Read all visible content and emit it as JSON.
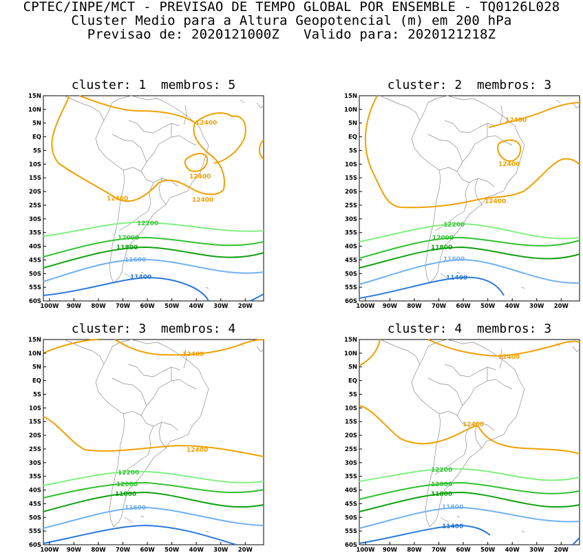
{
  "header": {
    "line1": "CPTEC/INPE/MCT - PREVISAO DE TEMPO GLOBAL POR ENSEMBLE - TQ0126L028",
    "line2": "Cluster Medio para a Altura Geopotencial (m) em 200 hPa",
    "line3": "Previsao de: 2020121000Z   Valido para: 2020121218Z"
  },
  "axes": {
    "lat_labels": [
      "15N",
      "10N",
      "5N",
      "EQ",
      "5S",
      "10S",
      "15S",
      "20S",
      "25S",
      "30S",
      "35S",
      "40S",
      "45S",
      "50S",
      "55S",
      "60S"
    ],
    "lon_labels": [
      "100W",
      "90W",
      "80W",
      "70W",
      "60W",
      "50W",
      "40W",
      "30W",
      "20W"
    ]
  },
  "contour_colors": {
    "12400": "#f0a000",
    "12200": "#80f080",
    "12000": "#30c030",
    "11800": "#10a010",
    "11600": "#70b0f0",
    "11400": "#2a78d8"
  },
  "panels": [
    {
      "title": "cluster: 1  membros: 5",
      "labels": {
        "a": "12400",
        "b": "12400",
        "c": "12400",
        "d": "12400",
        "e": "12200",
        "f": "12000",
        "g": "11800",
        "h": "11600",
        "i": "11400"
      }
    },
    {
      "title": "cluster: 2  membros: 3",
      "labels": {
        "a": "12400",
        "b": "12400",
        "c": "12400",
        "e": "12200",
        "f": "12000",
        "g": "11800",
        "h": "11600",
        "i": "11400"
      }
    },
    {
      "title": "cluster: 3  membros: 4",
      "labels": {
        "a": "12400",
        "b": "12400",
        "e": "12200",
        "f": "12000",
        "g": "11800",
        "h": "11600"
      }
    },
    {
      "title": "cluster: 4  membros: 3",
      "labels": {
        "a": "12400",
        "b": "12400",
        "e": "12200",
        "f": "12000",
        "g": "11800",
        "h": "11600",
        "i": "11400"
      }
    }
  ]
}
